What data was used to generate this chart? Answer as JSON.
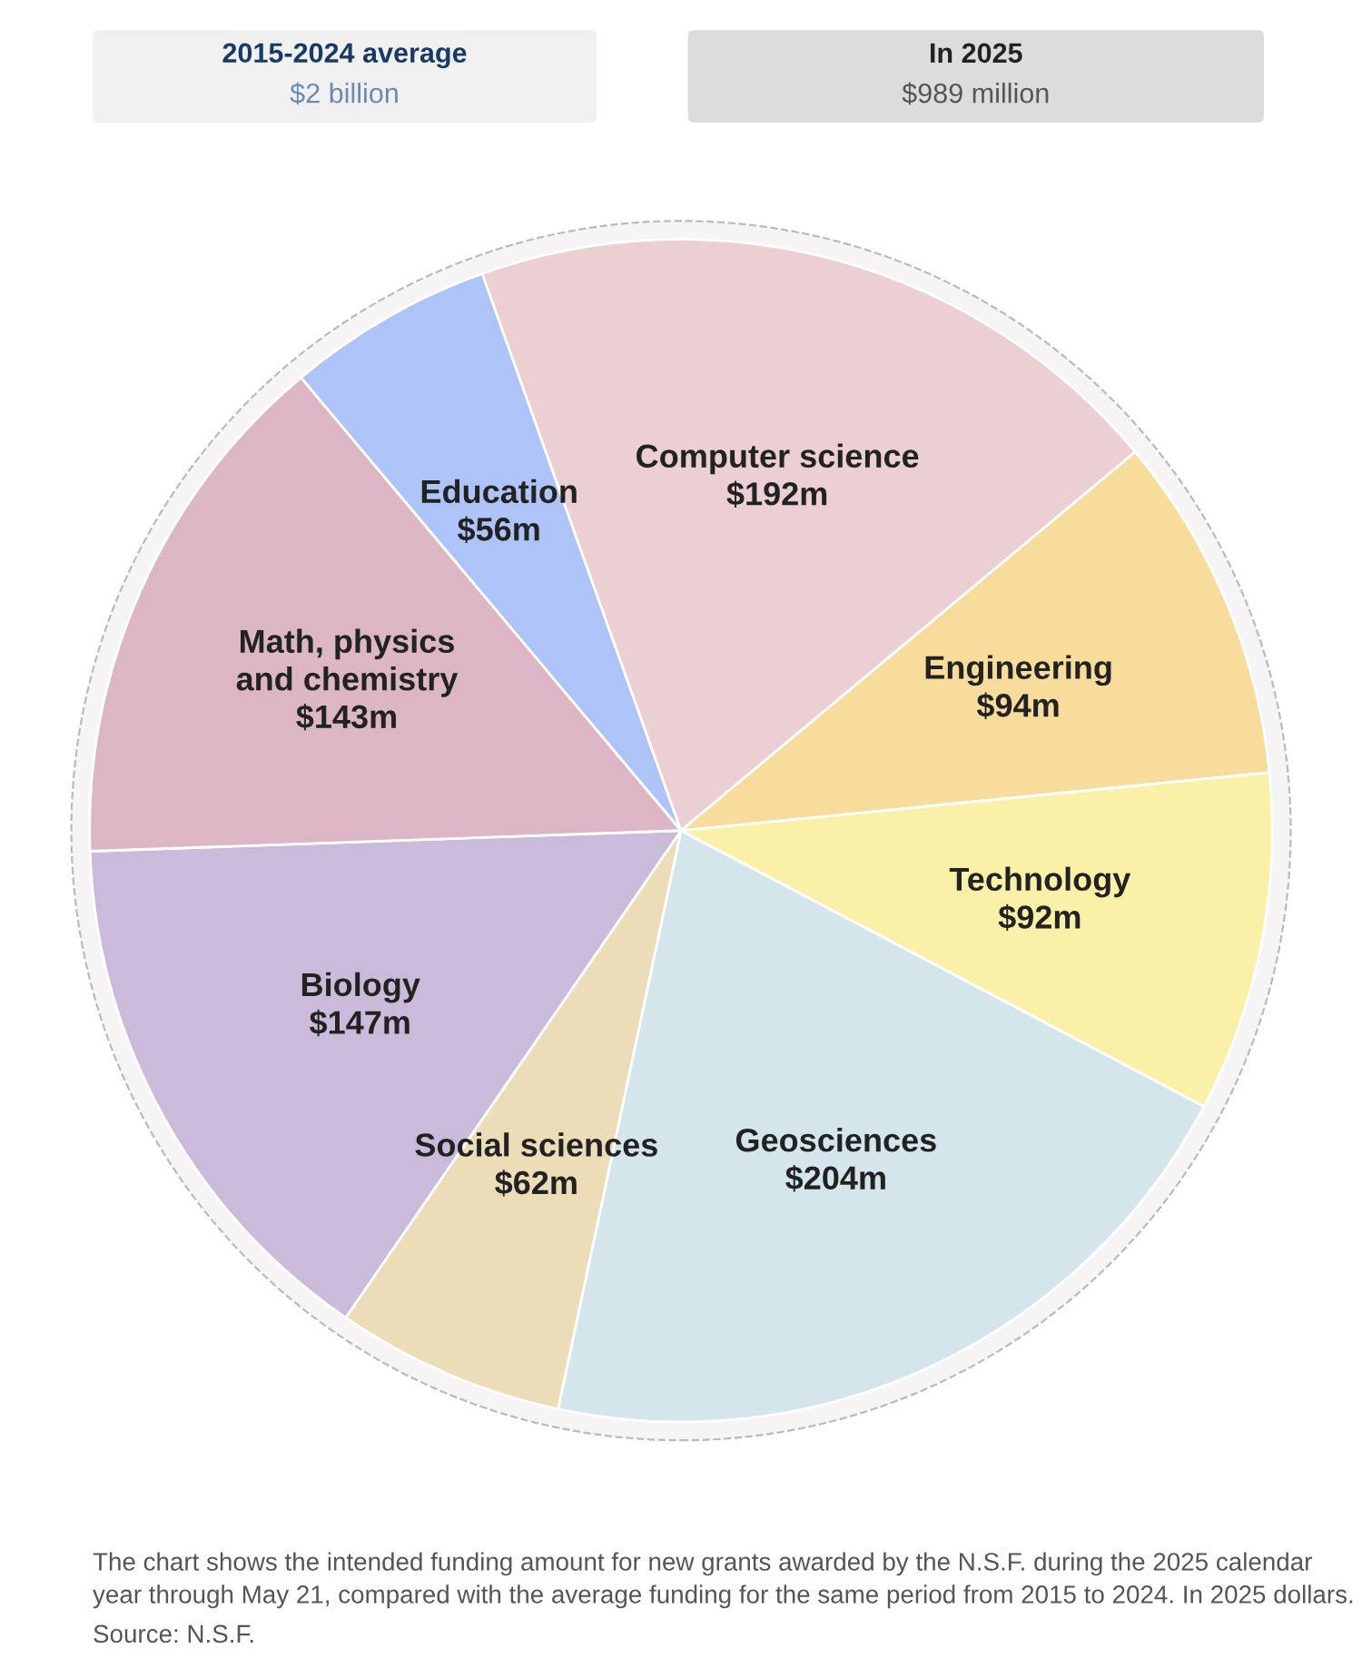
{
  "chart_data": {
    "type": "other",
    "categories": [
      "Education",
      "Computer science",
      "Engineering",
      "Technology",
      "Geosciences",
      "Social sciences",
      "Biology",
      "Math, physics and chemistry"
    ],
    "values": [
      56,
      192,
      94,
      92,
      204,
      62,
      147,
      143
    ],
    "value_labels": [
      "$56m",
      "$192m",
      "$94m",
      "$92m",
      "$204m",
      "$62m",
      "$147m",
      "$143m"
    ],
    "colors": [
      "#aec3f7",
      "#ebcfd2",
      "#f8dc9c",
      "#fbf0a8",
      "#d4e6eb",
      "#ecdcb8",
      "#cbbbdb",
      "#ddb6c6"
    ],
    "annotations": [
      "2015-2024 average",
      "$2 billion",
      "In 2025",
      "$989 million",
      "The chart shows the intended funding amount for new grants awarded by the N.S.F. during the 2025 calendar year through May 21, compared with the average funding for the same period from 2015 to 2024. In 2025 dollars.",
      "Source: N.S.F."
    ]
  }
}
